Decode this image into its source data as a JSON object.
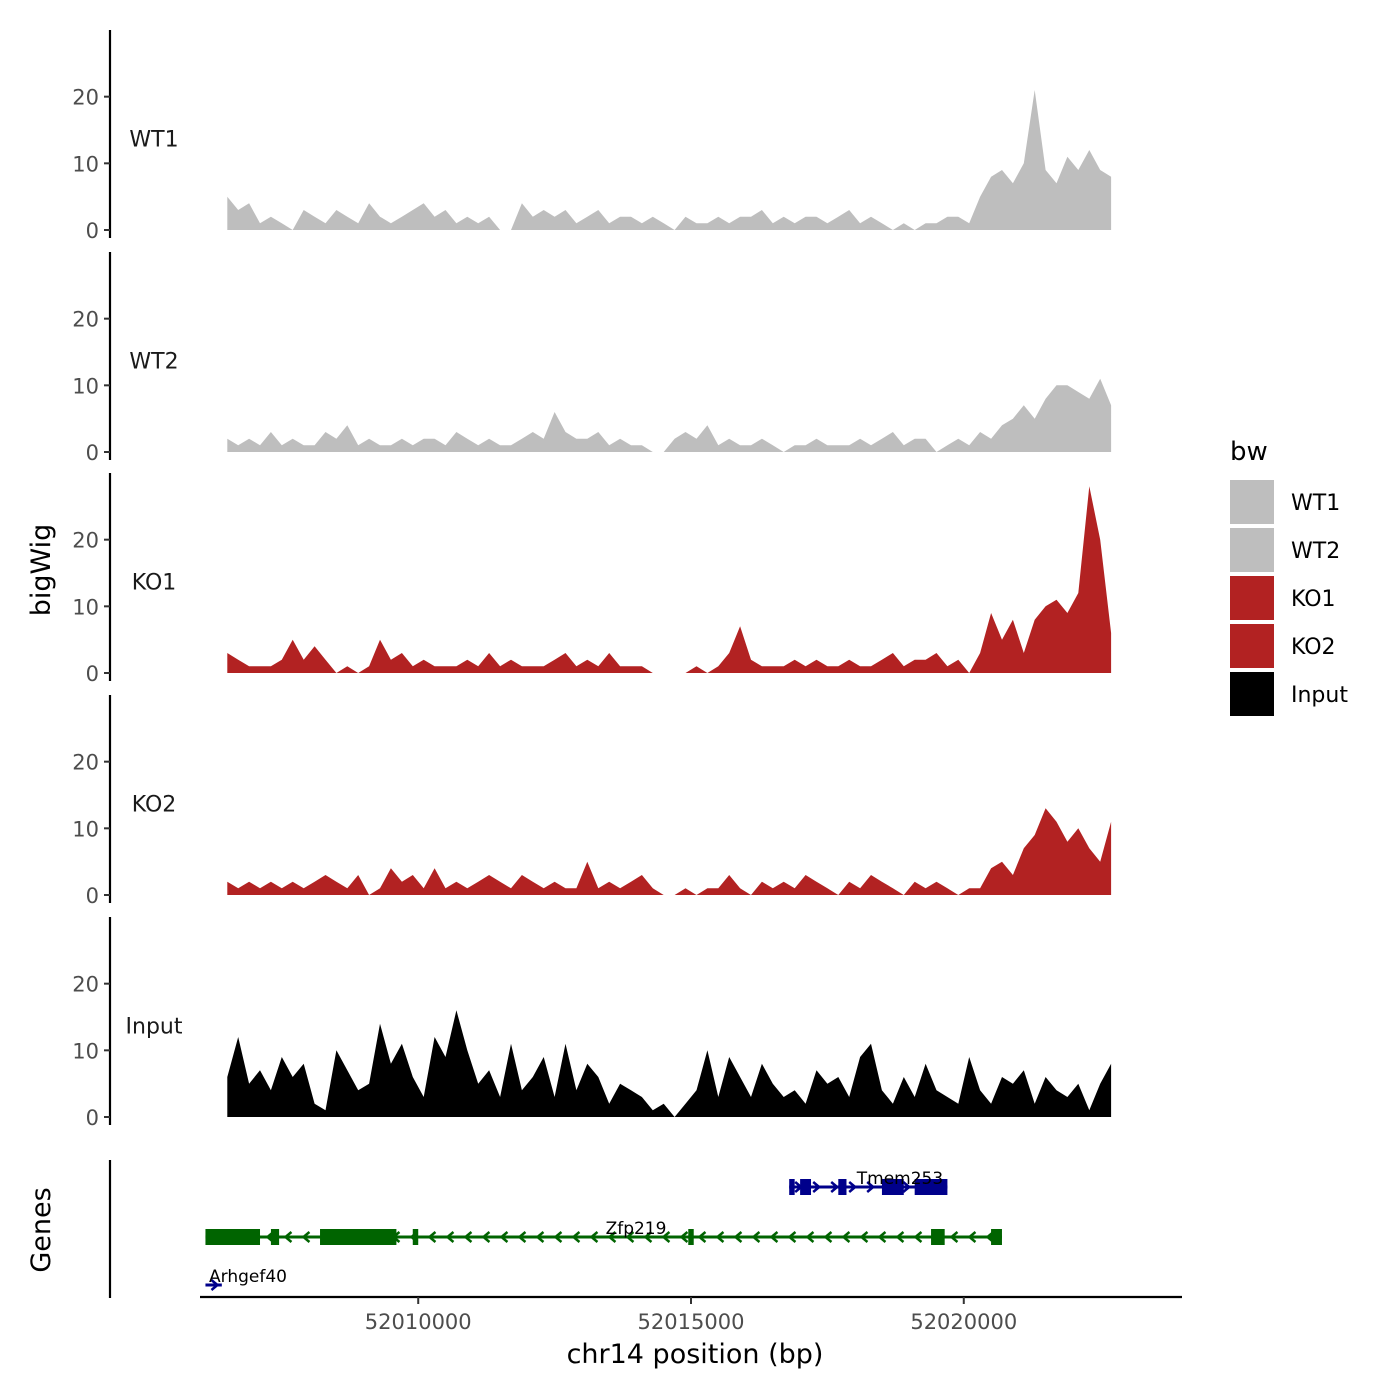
{
  "chart_data": {
    "type": "area",
    "title": "",
    "xlabel": "chr14 position (bp)",
    "ylabel": "bigWig",
    "genes_label": "Genes",
    "xlim": [
      52006000,
      52024000
    ],
    "x_ticks": [
      52010000,
      52015000,
      52020000
    ],
    "x_tick_labels": [
      "52010000",
      "52015000",
      "52020000"
    ],
    "ylim": [
      0,
      30
    ],
    "y_ticks": [
      0,
      10,
      20
    ],
    "y_tick_labels": [
      "0",
      "10",
      "20"
    ],
    "legend": {
      "title": "bw",
      "position": "right",
      "entries": [
        {
          "label": "WT1",
          "color": "#bebebe"
        },
        {
          "label": "WT2",
          "color": "#bebebe"
        },
        {
          "label": "KO1",
          "color": "#b22222"
        },
        {
          "label": "KO2",
          "color": "#b22222"
        },
        {
          "label": "Input",
          "color": "#000000"
        }
      ]
    },
    "x": [
      52006500,
      52006700,
      52006900,
      52007100,
      52007300,
      52007500,
      52007700,
      52007900,
      52008100,
      52008300,
      52008500,
      52008700,
      52008900,
      52009100,
      52009300,
      52009500,
      52009700,
      52009900,
      52010100,
      52010300,
      52010500,
      52010700,
      52010900,
      52011100,
      52011300,
      52011500,
      52011700,
      52011900,
      52012100,
      52012300,
      52012500,
      52012700,
      52012900,
      52013100,
      52013300,
      52013500,
      52013700,
      52013900,
      52014100,
      52014300,
      52014500,
      52014700,
      52014900,
      52015100,
      52015300,
      52015500,
      52015700,
      52015900,
      52016100,
      52016300,
      52016500,
      52016700,
      52016900,
      52017100,
      52017300,
      52017500,
      52017700,
      52017900,
      52018100,
      52018300,
      52018500,
      52018700,
      52018900,
      52019100,
      52019300,
      52019500,
      52019700,
      52019900,
      52020100,
      52020300,
      52020500,
      52020700,
      52020900,
      52021100,
      52021300,
      52021500,
      52021700,
      52021900,
      52022100,
      52022300,
      52022500,
      52022700
    ],
    "series": [
      {
        "name": "WT1",
        "color": "#bebebe",
        "values": [
          5,
          3,
          4,
          1,
          2,
          1,
          0,
          3,
          2,
          1,
          3,
          2,
          1,
          4,
          2,
          1,
          2,
          3,
          4,
          2,
          3,
          1,
          2,
          1,
          2,
          0,
          0,
          4,
          2,
          3,
          2,
          3,
          1,
          2,
          3,
          1,
          2,
          2,
          1,
          2,
          1,
          0,
          2,
          1,
          1,
          2,
          1,
          2,
          2,
          3,
          1,
          2,
          1,
          2,
          2,
          1,
          2,
          3,
          1,
          2,
          1,
          0,
          1,
          0,
          1,
          1,
          2,
          2,
          1,
          5,
          8,
          9,
          7,
          10,
          21,
          9,
          7,
          11,
          9,
          12,
          9,
          8
        ]
      },
      {
        "name": "WT2",
        "color": "#bebebe",
        "values": [
          2,
          1,
          2,
          1,
          3,
          1,
          2,
          1,
          1,
          3,
          2,
          4,
          1,
          2,
          1,
          1,
          2,
          1,
          2,
          2,
          1,
          3,
          2,
          1,
          2,
          1,
          1,
          2,
          3,
          2,
          6,
          3,
          2,
          2,
          3,
          1,
          2,
          1,
          1,
          0,
          0,
          2,
          3,
          2,
          4,
          1,
          2,
          1,
          1,
          2,
          1,
          0,
          1,
          1,
          2,
          1,
          1,
          1,
          2,
          1,
          2,
          3,
          1,
          2,
          2,
          0,
          1,
          2,
          1,
          3,
          2,
          4,
          5,
          7,
          5,
          8,
          10,
          10,
          9,
          8,
          11,
          7
        ]
      },
      {
        "name": "KO1",
        "color": "#b22222",
        "values": [
          3,
          2,
          1,
          1,
          1,
          2,
          5,
          2,
          4,
          2,
          0,
          1,
          0,
          1,
          5,
          2,
          3,
          1,
          2,
          1,
          1,
          1,
          2,
          1,
          3,
          1,
          2,
          1,
          1,
          1,
          2,
          3,
          1,
          2,
          1,
          3,
          1,
          1,
          1,
          0,
          0,
          0,
          0,
          1,
          0,
          1,
          3,
          7,
          2,
          1,
          1,
          1,
          2,
          1,
          2,
          1,
          1,
          2,
          1,
          1,
          2,
          3,
          1,
          2,
          2,
          3,
          1,
          2,
          0,
          3,
          9,
          5,
          8,
          3,
          8,
          10,
          11,
          9,
          12,
          28,
          20,
          6
        ]
      },
      {
        "name": "KO2",
        "color": "#b22222",
        "values": [
          2,
          1,
          2,
          1,
          2,
          1,
          2,
          1,
          2,
          3,
          2,
          1,
          3,
          0,
          1,
          4,
          2,
          3,
          1,
          4,
          1,
          2,
          1,
          2,
          3,
          2,
          1,
          3,
          2,
          1,
          2,
          1,
          1,
          5,
          1,
          2,
          1,
          2,
          3,
          1,
          0,
          0,
          1,
          0,
          1,
          1,
          3,
          1,
          0,
          2,
          1,
          2,
          1,
          3,
          2,
          1,
          0,
          2,
          1,
          3,
          2,
          1,
          0,
          2,
          1,
          2,
          1,
          0,
          1,
          1,
          4,
          5,
          3,
          7,
          9,
          13,
          11,
          8,
          10,
          7,
          5,
          11
        ]
      },
      {
        "name": "Input",
        "color": "#000000",
        "values": [
          6,
          12,
          5,
          7,
          4,
          9,
          6,
          8,
          2,
          1,
          10,
          7,
          4,
          5,
          14,
          8,
          11,
          6,
          3,
          12,
          9,
          16,
          10,
          5,
          7,
          3,
          11,
          4,
          6,
          9,
          3,
          11,
          4,
          8,
          6,
          2,
          5,
          4,
          3,
          1,
          2,
          0,
          2,
          4,
          10,
          3,
          9,
          6,
          3,
          8,
          5,
          3,
          4,
          2,
          7,
          5,
          6,
          3,
          9,
          11,
          4,
          2,
          6,
          3,
          8,
          4,
          3,
          2,
          9,
          4,
          2,
          6,
          5,
          7,
          2,
          6,
          4,
          3,
          5,
          1,
          5,
          8
        ]
      }
    ],
    "genes": [
      {
        "name": "Tmem253",
        "strand": "+",
        "color": "#00008b",
        "start": 52016800,
        "end": 52019700,
        "exons": [
          [
            52016800,
            52016900
          ],
          [
            52017000,
            52017200
          ],
          [
            52017700,
            52017850
          ],
          [
            52018500,
            52018900
          ],
          [
            52019100,
            52019700
          ]
        ]
      },
      {
        "name": "Zfp219",
        "strand": "-",
        "color": "#006400",
        "start": 52006100,
        "end": 52020700,
        "exons": [
          [
            52006100,
            52007100
          ],
          [
            52007300,
            52007450
          ],
          [
            52008200,
            52009600
          ],
          [
            52009900,
            52010000
          ],
          [
            52014950,
            52015050
          ],
          [
            52019400,
            52019650
          ],
          [
            52020500,
            52020700
          ]
        ]
      },
      {
        "name": "Arhgef40",
        "strand": "+",
        "color": "#00008b",
        "start": 52006100,
        "end": 52006400,
        "exons": []
      }
    ]
  }
}
